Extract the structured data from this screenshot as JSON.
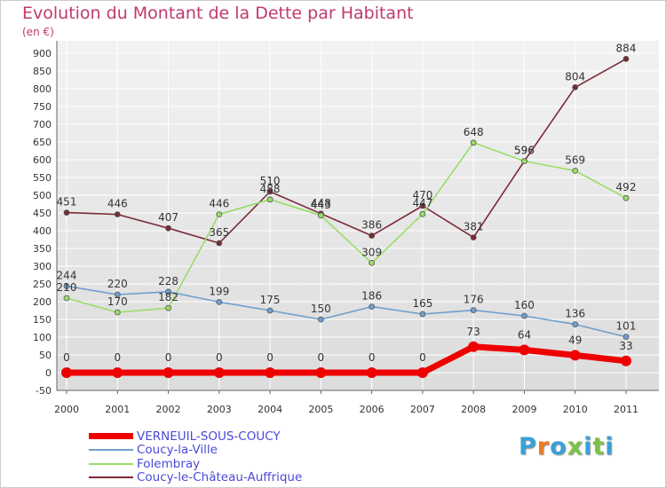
{
  "title": "Evolution du Montant de la Dette par Habitant",
  "subtitle": "(en €)",
  "logo": {
    "text": "Proxiti",
    "letter_colors": [
      "#3aa0d8",
      "#ee7a1e",
      "#3aa0d8",
      "#7cc247",
      "#3aa0d8",
      "#7cc247",
      "#3aa0d8"
    ]
  },
  "chart_data": {
    "type": "line",
    "title": "Evolution du Montant de la Dette par Habitant",
    "subtitle": "(en €)",
    "xlabel": "",
    "ylabel": "",
    "x": [
      "2000",
      "2001",
      "2002",
      "2003",
      "2004",
      "2005",
      "2006",
      "2007",
      "2008",
      "2009",
      "2010",
      "2011"
    ],
    "ylim": [
      -50,
      900
    ],
    "yticks": [
      -50,
      0,
      50,
      100,
      150,
      200,
      250,
      300,
      350,
      400,
      450,
      500,
      550,
      600,
      650,
      700,
      750,
      800,
      850,
      900
    ],
    "grid": true,
    "legend_position": "bottom-left",
    "series": [
      {
        "name": "VERNEUIL-SOUS-COUCY",
        "color": "#ee0000",
        "values": [
          0,
          0,
          0,
          0,
          0,
          0,
          0,
          0,
          73,
          64,
          49,
          33
        ]
      },
      {
        "name": "Coucy-la-Ville",
        "color": "#6f9fcd",
        "values": [
          244,
          220,
          228,
          199,
          175,
          150,
          186,
          165,
          176,
          160,
          136,
          101
        ]
      },
      {
        "name": "Folembray",
        "color": "#99dd66",
        "values": [
          210,
          170,
          182,
          446,
          488,
          443,
          309,
          447,
          648,
          596,
          569,
          492
        ]
      },
      {
        "name": "Coucy-le-Château-Auffrique",
        "color": "#7a2a35",
        "values": [
          451,
          446,
          407,
          365,
          510,
          448,
          386,
          470,
          381,
          596,
          804,
          884
        ]
      }
    ]
  }
}
